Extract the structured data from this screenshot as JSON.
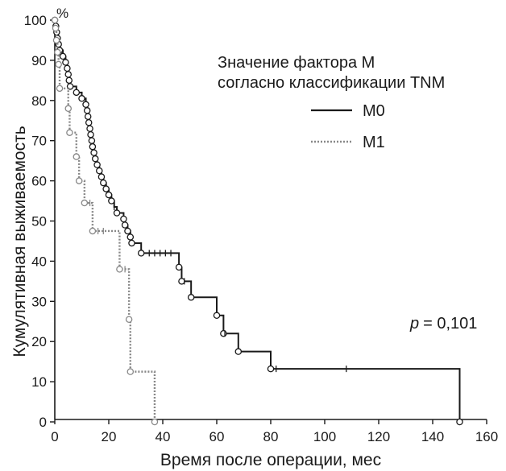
{
  "chart_data": {
    "type": "line",
    "subtype": "kaplan-meier",
    "xlabel": "Время после операции, мес",
    "ylabel": "Кумулятивная выживаемость",
    "y_unit": "%",
    "xlim": [
      0,
      160
    ],
    "ylim": [
      0,
      100
    ],
    "xticks": [
      "0",
      "20",
      "40",
      "60",
      "80",
      "100",
      "120",
      "140",
      "160"
    ],
    "yticks": [
      "0",
      "10",
      "20",
      "30",
      "40",
      "50",
      "60",
      "70",
      "80",
      "90",
      "100"
    ],
    "grid": false,
    "legend": {
      "title_line1": "Значение фактора M",
      "title_line2": "согласно классификации TNM",
      "placement": "top-right"
    },
    "annotation": {
      "p_label": "p",
      "p_value": "= 0,101"
    },
    "series": [
      {
        "name": "M0",
        "style": "solid",
        "color": "#1a1a1a",
        "steps": [
          [
            0,
            100
          ],
          [
            0.4,
            98.5
          ],
          [
            0.7,
            97
          ],
          [
            1,
            95.5
          ],
          [
            1.4,
            94
          ],
          [
            1.8,
            92.5
          ],
          [
            3,
            91
          ],
          [
            4,
            89.5
          ],
          [
            4.6,
            88
          ],
          [
            5,
            86.5
          ],
          [
            5.3,
            85
          ],
          [
            5.7,
            83.5
          ],
          [
            8,
            82
          ],
          [
            10,
            80.5
          ],
          [
            11.5,
            79
          ],
          [
            12,
            77.5
          ],
          [
            12.3,
            76
          ],
          [
            12.6,
            74.5
          ],
          [
            13,
            73
          ],
          [
            13.3,
            71.5
          ],
          [
            13.7,
            70
          ],
          [
            14,
            68.5
          ],
          [
            14.5,
            67
          ],
          [
            15,
            65.5
          ],
          [
            15.7,
            64
          ],
          [
            16.5,
            62.5
          ],
          [
            17.3,
            61
          ],
          [
            18,
            59.5
          ],
          [
            19,
            58
          ],
          [
            20,
            56.5
          ],
          [
            21,
            55
          ],
          [
            22,
            53.5
          ],
          [
            23,
            52
          ],
          [
            25.5,
            50.5
          ],
          [
            26,
            49
          ],
          [
            27,
            47.5
          ],
          [
            28,
            46
          ],
          [
            28.5,
            44.5
          ],
          [
            32,
            42
          ],
          [
            46,
            38.5
          ],
          [
            47,
            35
          ],
          [
            50.5,
            31
          ],
          [
            60,
            26.5
          ],
          [
            62.5,
            22
          ],
          [
            68,
            17.5
          ],
          [
            80,
            13.2
          ],
          [
            150,
            0
          ]
        ],
        "event_markers": [
          [
            0,
            100
          ],
          [
            0.4,
            98.5
          ],
          [
            0.7,
            97
          ],
          [
            1,
            95.5
          ],
          [
            1.4,
            94
          ],
          [
            1.8,
            92.5
          ],
          [
            3,
            91
          ],
          [
            4,
            89.5
          ],
          [
            4.6,
            88
          ],
          [
            5,
            86.5
          ],
          [
            5.3,
            85
          ],
          [
            5.7,
            83.5
          ],
          [
            8,
            82
          ],
          [
            10,
            80.5
          ],
          [
            11.5,
            79
          ],
          [
            12,
            77.5
          ],
          [
            12.3,
            76
          ],
          [
            12.6,
            74.5
          ],
          [
            13,
            73
          ],
          [
            13.3,
            71.5
          ],
          [
            13.7,
            70
          ],
          [
            14,
            68.5
          ],
          [
            14.5,
            67
          ],
          [
            15,
            65.5
          ],
          [
            15.7,
            64
          ],
          [
            16.5,
            62.5
          ],
          [
            17.3,
            61
          ],
          [
            18,
            59.5
          ],
          [
            19,
            58
          ],
          [
            20,
            56.5
          ],
          [
            21,
            55
          ],
          [
            23,
            52
          ],
          [
            25.5,
            50.5
          ],
          [
            26,
            49
          ],
          [
            27,
            47.5
          ],
          [
            28,
            46
          ],
          [
            28.5,
            44.5
          ],
          [
            32,
            42
          ],
          [
            46,
            38.5
          ],
          [
            47,
            35
          ],
          [
            50.5,
            31
          ],
          [
            60,
            26.5
          ],
          [
            62.5,
            22
          ],
          [
            68,
            17.5
          ],
          [
            80,
            13.2
          ],
          [
            150,
            0
          ]
        ],
        "censored": [
          [
            22,
            53.5
          ],
          [
            35,
            42
          ],
          [
            37,
            42
          ],
          [
            39,
            42
          ],
          [
            41,
            42
          ],
          [
            43,
            42
          ],
          [
            48,
            35
          ],
          [
            63,
            22
          ],
          [
            82,
            13.2
          ],
          [
            108,
            13.2
          ]
        ]
      },
      {
        "name": "M1",
        "style": "dotted",
        "color": "#888888",
        "steps": [
          [
            0,
            100
          ],
          [
            0.3,
            98
          ],
          [
            0.6,
            95
          ],
          [
            1,
            92
          ],
          [
            1.4,
            89
          ],
          [
            1.8,
            83
          ],
          [
            5,
            78
          ],
          [
            5.5,
            72
          ],
          [
            8,
            66
          ],
          [
            9,
            60
          ],
          [
            11,
            54.5
          ],
          [
            14,
            47.5
          ],
          [
            24,
            38
          ],
          [
            27.5,
            25.5
          ],
          [
            28,
            12.5
          ],
          [
            37,
            0
          ]
        ],
        "event_markers": [
          [
            0,
            100
          ],
          [
            0.3,
            98
          ],
          [
            0.6,
            95
          ],
          [
            1,
            92
          ],
          [
            1.4,
            89
          ],
          [
            1.8,
            83
          ],
          [
            5,
            78
          ],
          [
            5.5,
            72
          ],
          [
            8,
            66
          ],
          [
            9,
            60
          ],
          [
            11,
            54.5
          ],
          [
            14,
            47.5
          ],
          [
            24,
            38
          ],
          [
            27.5,
            25.5
          ],
          [
            28,
            12.5
          ],
          [
            37,
            0
          ]
        ],
        "censored": [
          [
            13,
            54.5
          ],
          [
            16,
            47.5
          ],
          [
            18,
            47.5
          ],
          [
            26,
            38
          ]
        ]
      }
    ]
  }
}
